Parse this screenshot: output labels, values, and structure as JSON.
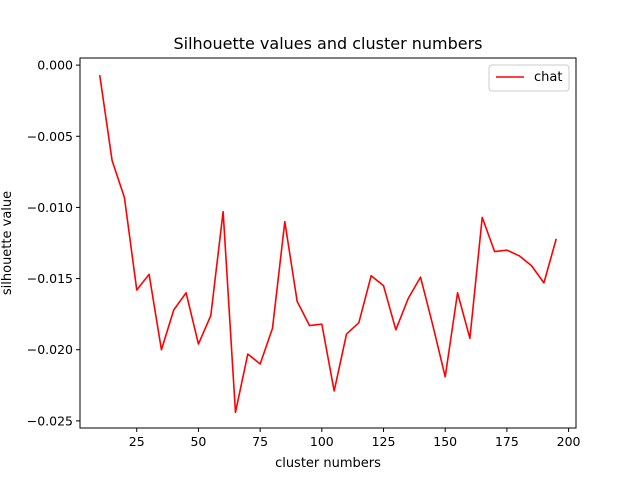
{
  "chart_data": {
    "type": "line",
    "title": "Silhouette values and cluster numbers",
    "xlabel": "cluster numbers",
    "ylabel": "silhouette value",
    "xlim": [
      2,
      203
    ],
    "ylim": [
      -0.0255,
      0.0005
    ],
    "xticks": [
      25,
      50,
      75,
      100,
      125,
      150,
      175,
      200
    ],
    "xtick_labels": [
      "25",
      "50",
      "75",
      "100",
      "125",
      "150",
      "175",
      "200"
    ],
    "yticks": [
      0.0,
      -0.005,
      -0.01,
      -0.015,
      -0.02,
      -0.025
    ],
    "ytick_labels": [
      "0.000",
      "−0.005",
      "−0.010",
      "−0.015",
      "−0.020",
      "−0.025"
    ],
    "grid": false,
    "legend_position": "top-right",
    "series": [
      {
        "name": "chat",
        "color": "#ff0000",
        "x": [
          10,
          15,
          20,
          25,
          30,
          35,
          40,
          45,
          50,
          55,
          60,
          65,
          70,
          75,
          80,
          85,
          90,
          95,
          100,
          105,
          110,
          115,
          120,
          125,
          130,
          135,
          140,
          145,
          150,
          155,
          160,
          165,
          170,
          175,
          180,
          185,
          190,
          195
        ],
        "values": [
          -0.0007,
          -0.0067,
          -0.0093,
          -0.0158,
          -0.0147,
          -0.02,
          -0.0172,
          -0.016,
          -0.0196,
          -0.0176,
          -0.0103,
          -0.0244,
          -0.0203,
          -0.021,
          -0.0185,
          -0.011,
          -0.0166,
          -0.0183,
          -0.0182,
          -0.0229,
          -0.0189,
          -0.0181,
          -0.0148,
          -0.0155,
          -0.0186,
          -0.0164,
          -0.0149,
          -0.0183,
          -0.0219,
          -0.016,
          -0.0192,
          -0.0107,
          -0.0131,
          -0.013,
          -0.0134,
          -0.0141,
          -0.0153,
          -0.0122
        ]
      }
    ]
  }
}
